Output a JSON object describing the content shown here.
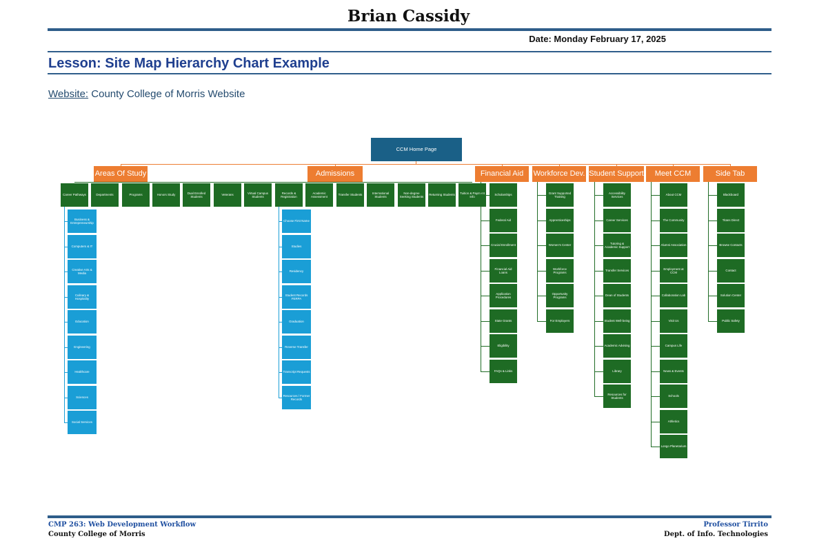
{
  "header": {
    "author": "Brian Cassidy",
    "date": "Date: Monday February 17, 2025",
    "lesson_title": "Lesson: Site Map Hierarchy Chart Example",
    "website_label": "Website:",
    "website_name": "County College of Morris Website"
  },
  "chart": {
    "root": "CCM Home Page",
    "categories": [
      {
        "label": "Areas Of Study",
        "children": [
          {
            "label": "Career Pathways",
            "children": [
              "Business & Entrepreneurship",
              "Computers & IT",
              "Creative Arts & Media",
              "Culinary & Hospitality",
              "Education",
              "Engineering",
              "Healthcare",
              "Sciences",
              "Social Services"
            ]
          },
          {
            "label": "Departments",
            "children": []
          },
          {
            "label": "Programs",
            "children": []
          },
          {
            "label": "Honors Study",
            "children": []
          }
        ]
      },
      {
        "label": "Admissions",
        "children": [
          {
            "label": "Dual Enrolled Students",
            "children": []
          },
          {
            "label": "Veterans",
            "children": []
          },
          {
            "label": "Virtual Campus Students",
            "children": []
          },
          {
            "label": "Records & Registration",
            "children": [
              "Choose First Name",
              "Studies",
              "Residency",
              "Student Records FERPA",
              "Graduation",
              "Reverse Transfer",
              "Transcript Requests",
              "Resources / Former Records"
            ]
          },
          {
            "label": "Academic Assessment",
            "children": []
          },
          {
            "label": "Transfer Students",
            "children": []
          },
          {
            "label": "International Students",
            "children": []
          },
          {
            "label": "Non-degree Seeking Students",
            "children": []
          },
          {
            "label": "Returning Students",
            "children": []
          },
          {
            "label": "Tuition & Payment Info",
            "children": []
          }
        ]
      },
      {
        "label": "Financial Aid",
        "children": [
          "Scholarships",
          "Federal Aid",
          "Crucial Enrollment",
          "Financial Aid Loans",
          "Application Procedures",
          "State Grants",
          "Eligibility",
          "FAQs & Links"
        ]
      },
      {
        "label": "Workforce Dev.",
        "children": [
          "Grant Supported Training",
          "Apprenticeships",
          "Women's Center",
          "Workforce Programs",
          "Opportunity Programs",
          "For Employers"
        ]
      },
      {
        "label": "Student Support",
        "children": [
          "Accessibility Services",
          "Career Services",
          "Tutoring & Academic Support",
          "Transfer Services",
          "Dean of Students",
          "Student Well-being",
          "Academic Advising",
          "Library",
          "Resources for Students"
        ]
      },
      {
        "label": "Meet CCM",
        "children": [
          "About CCM",
          "The Community",
          "Alumni Association",
          "Employment at CCM",
          "Collaboration Lab",
          "Visit Us",
          "Campus Life",
          "News & Events",
          "Schools",
          "Athletics",
          "Longo Planetarium"
        ]
      },
      {
        "label": "Side Tab",
        "children": [
          "Blackboard",
          "Titans Direct",
          "Browse Contacts",
          "Contact",
          "Solution Center",
          "Public Safety"
        ]
      }
    ]
  },
  "colors": {
    "root": "#1a6087",
    "category": "#ed7d31",
    "page_green": "#1e6b24",
    "page_blue": "#1a9ed6",
    "rule": "#2e5d8a",
    "title": "#1f3f8f"
  },
  "footer": {
    "course": "CMP 263: Web Development Workflow",
    "college": "County College of Morris",
    "professor": "Professor Tirrito",
    "department": "Dept. of Info. Technologies"
  }
}
